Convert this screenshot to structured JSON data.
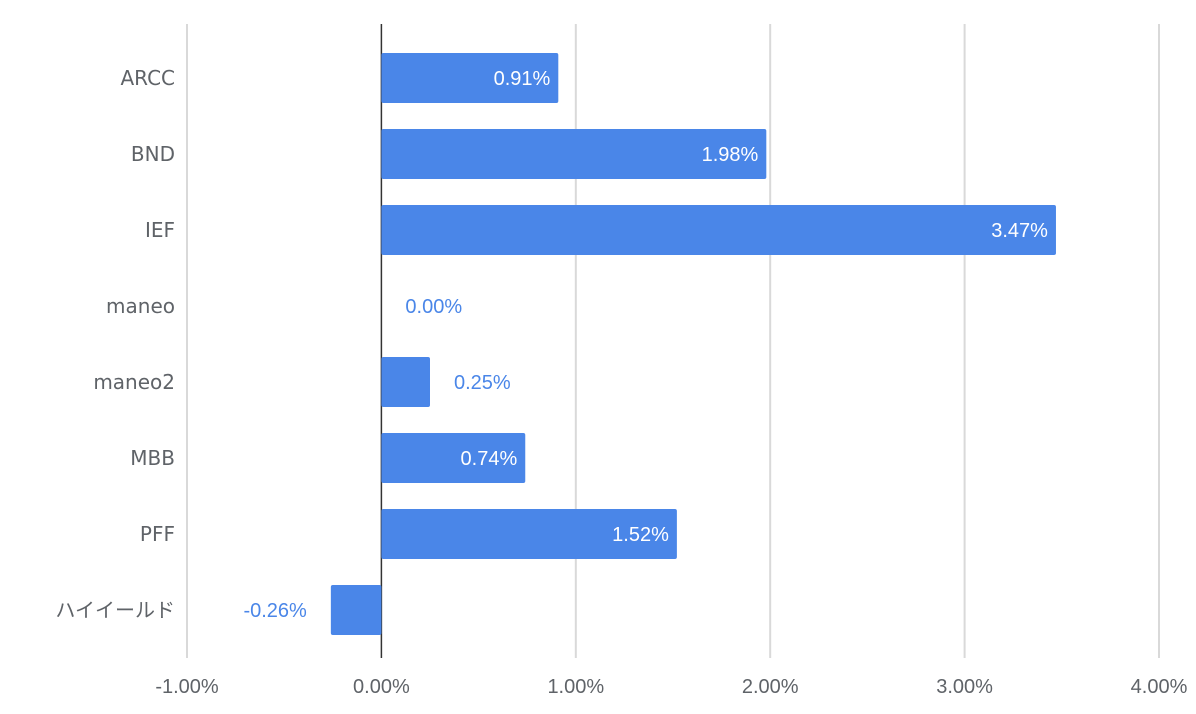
{
  "chart_data": {
    "type": "bar",
    "orientation": "horizontal",
    "categories": [
      "ARCC",
      "BND",
      "IEF",
      "maneo",
      "maneo2",
      "MBB",
      "PFF",
      "ハイイールド"
    ],
    "values": [
      0.91,
      1.98,
      3.47,
      0.0,
      0.25,
      0.74,
      1.52,
      -0.26
    ],
    "data_labels": [
      "0.91%",
      "1.98%",
      "3.47%",
      "0.00%",
      "0.25%",
      "0.74%",
      "1.52%",
      "-0.26%"
    ],
    "x_ticks": [
      -1,
      0,
      1,
      2,
      3,
      4
    ],
    "x_tick_labels": [
      "-1.00%",
      "0.00%",
      "1.00%",
      "2.00%",
      "3.00%",
      "4.00%"
    ],
    "xlim": [
      -1,
      4
    ],
    "unit": "%",
    "grid": true,
    "legend": "none",
    "bar_color": "#4a86e8",
    "label_inside_color": "#ffffff",
    "label_outside_color": "#4a86e8"
  }
}
